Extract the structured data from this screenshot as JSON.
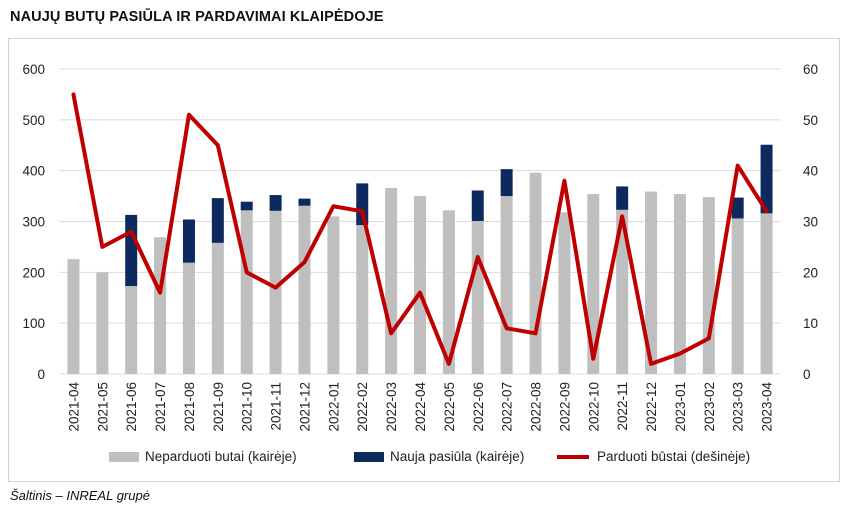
{
  "title": "NAUJŲ BUTŲ PASIŪLA IR PARDAVIMAI KLAIPĖDOJE",
  "source": "Šaltinis – INREAL grupė",
  "colors": {
    "unsold": "#bfbfbf",
    "new_supply": "#0d2a5e",
    "sold": "#c00000",
    "grid": "#dcdcdc"
  },
  "chart_data": {
    "type": "bar",
    "title": "NAUJŲ BUTŲ PASIŪLA IR PARDAVIMAI KLAIPĖDOJE",
    "categories": [
      "2021-04",
      "2021-05",
      "2021-06",
      "2021-07",
      "2021-08",
      "2021-09",
      "2021-10",
      "2021-11",
      "2021-12",
      "2022-01",
      "2022-02",
      "2022-03",
      "2022-04",
      "2022-05",
      "2022-06",
      "2022-07",
      "2022-08",
      "2022-09",
      "2022-10",
      "2022-11",
      "2022-12",
      "2023-01",
      "2023-02",
      "2023-03",
      "2023-04"
    ],
    "y_left": {
      "min": 0,
      "max": 600,
      "ticks": [
        "0",
        "100",
        "200",
        "300",
        "400",
        "500",
        "600"
      ]
    },
    "y_right": {
      "min": 0,
      "max": 60,
      "ticks": [
        "0",
        "10",
        "20",
        "30",
        "40",
        "50",
        "60"
      ]
    },
    "grid": true,
    "legend_position": "bottom",
    "series": [
      {
        "name": "Neparduoti butai (kairėje)",
        "type": "bar-stacked",
        "axis": "left",
        "values": [
          226,
          200,
          173,
          269,
          219,
          258,
          322,
          321,
          331,
          310,
          293,
          366,
          350,
          322,
          301,
          350,
          396,
          318,
          354,
          323,
          359,
          354,
          348,
          306,
          316
        ]
      },
      {
        "name": "Nauja pasiūla (kairėje)",
        "type": "bar-stacked",
        "axis": "left",
        "values": [
          0,
          0,
          140,
          0,
          85,
          88,
          17,
          31,
          14,
          0,
          82,
          0,
          0,
          0,
          60,
          53,
          0,
          0,
          0,
          46,
          0,
          0,
          0,
          41,
          135
        ]
      },
      {
        "name": "Parduoti būstai (dešinėje)",
        "type": "line",
        "axis": "right",
        "values": [
          55,
          25,
          28,
          16,
          51,
          45,
          20,
          17,
          22,
          33,
          32,
          8,
          16,
          2,
          23,
          9,
          8,
          38,
          3,
          31,
          2,
          4,
          7,
          41,
          32
        ]
      }
    ]
  }
}
